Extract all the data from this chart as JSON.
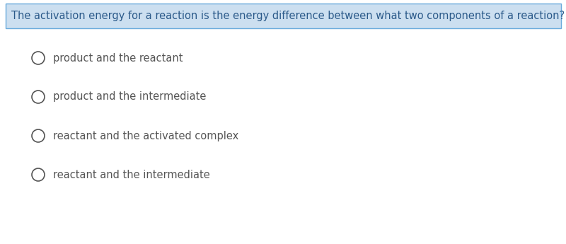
{
  "question": "The activation energy for a reaction is the energy difference between what two components of a reaction?",
  "options": [
    "product and the reactant",
    "product and the intermediate",
    "reactant and the activated complex",
    "reactant and the intermediate"
  ],
  "question_bg_color": "#ccdff0",
  "question_border_color": "#6aabdc",
  "question_text_color": "#2b5a8a",
  "option_text_color": "#555555",
  "background_color": "#ffffff",
  "question_fontsize": 10.5,
  "option_fontsize": 10.5,
  "fig_width": 8.0,
  "fig_height": 3.45,
  "dpi": 100
}
